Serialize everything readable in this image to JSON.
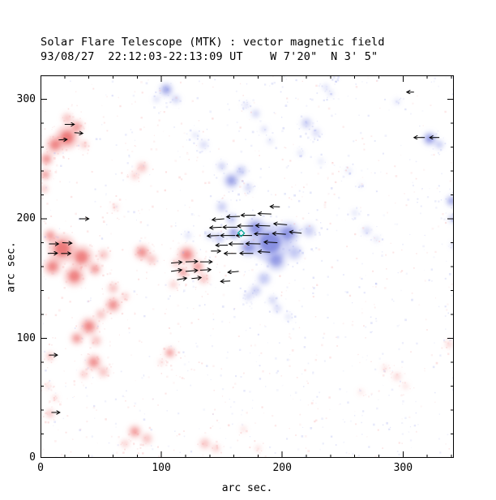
{
  "title": {
    "line1": "Solar Flare Telescope (MTK) : vector magnetic field",
    "line2": "93/08/27  22:12:03-22:13:09 UT    W 7'20\"  N 3' 5\""
  },
  "axes": {
    "xlabel": "arc sec.",
    "ylabel": "arc sec."
  },
  "chart_data": {
    "type": "heatmap",
    "title": "Solar Flare Telescope (MTK) : vector magnetic field",
    "subtitle": "93/08/27  22:12:03-22:13:09 UT    W 7'20\"  N 3' 5\"",
    "xlabel": "arc sec.",
    "ylabel": "arc sec.",
    "x_range": [
      0,
      342
    ],
    "y_range": [
      0,
      320
    ],
    "x_ticks": [
      0,
      100,
      200,
      300
    ],
    "y_ticks": [
      0,
      100,
      200,
      300
    ],
    "minor_step": 20,
    "colors": {
      "red_light": "#f59a9a",
      "red_dark": "#e85555",
      "blue_light": "#9aa3ec",
      "blue_dark": "#5b66d6",
      "arrow": "#000000",
      "marker": "#00a896",
      "frame": "#000000"
    },
    "blobs": [
      [
        22,
        268,
        10,
        "r",
        0.7
      ],
      [
        12,
        262,
        8,
        "r",
        0.6
      ],
      [
        30,
        277,
        6,
        "r",
        0.5
      ],
      [
        22,
        284,
        5,
        "r",
        0.45
      ],
      [
        36,
        262,
        4,
        "r",
        0.4
      ],
      [
        5,
        250,
        6,
        "r",
        0.55
      ],
      [
        4,
        237,
        5,
        "r",
        0.5
      ],
      [
        3,
        225,
        4,
        "r",
        0.4
      ],
      [
        84,
        243,
        5,
        "r",
        0.45
      ],
      [
        78,
        236,
        4,
        "r",
        0.35
      ],
      [
        18,
        175,
        12,
        "r",
        0.7
      ],
      [
        34,
        168,
        10,
        "r",
        0.65
      ],
      [
        10,
        160,
        8,
        "r",
        0.6
      ],
      [
        28,
        152,
        9,
        "r",
        0.65
      ],
      [
        45,
        158,
        6,
        "r",
        0.5
      ],
      [
        52,
        170,
        5,
        "r",
        0.45
      ],
      [
        8,
        186,
        6,
        "r",
        0.5
      ],
      [
        60,
        142,
        5,
        "r",
        0.45
      ],
      [
        70,
        135,
        4,
        "r",
        0.35
      ],
      [
        60,
        128,
        7,
        "r",
        0.55
      ],
      [
        50,
        120,
        5,
        "r",
        0.45
      ],
      [
        84,
        172,
        7,
        "r",
        0.55
      ],
      [
        92,
        166,
        5,
        "r",
        0.45
      ],
      [
        121,
        170,
        8,
        "r",
        0.6
      ],
      [
        130,
        160,
        6,
        "r",
        0.5
      ],
      [
        135,
        150,
        5,
        "r",
        0.45
      ],
      [
        118,
        155,
        5,
        "r",
        0.5
      ],
      [
        112,
        163,
        4,
        "r",
        0.4
      ],
      [
        110,
        145,
        4,
        "r",
        0.35
      ],
      [
        62,
        210,
        3,
        "r",
        0.3
      ],
      [
        40,
        110,
        8,
        "r",
        0.6
      ],
      [
        30,
        100,
        6,
        "r",
        0.5
      ],
      [
        46,
        98,
        5,
        "r",
        0.45
      ],
      [
        44,
        80,
        7,
        "r",
        0.55
      ],
      [
        52,
        72,
        5,
        "r",
        0.45
      ],
      [
        36,
        70,
        4,
        "r",
        0.4
      ],
      [
        8,
        85,
        4,
        "r",
        0.45
      ],
      [
        12,
        50,
        3,
        "r",
        0.3
      ],
      [
        6,
        60,
        3,
        "r",
        0.3
      ],
      [
        8,
        37,
        4,
        "r",
        0.45
      ],
      [
        107,
        88,
        5,
        "r",
        0.5
      ],
      [
        100,
        80,
        3,
        "r",
        0.3
      ],
      [
        78,
        22,
        6,
        "r",
        0.5
      ],
      [
        88,
        16,
        5,
        "r",
        0.45
      ],
      [
        70,
        12,
        4,
        "r",
        0.35
      ],
      [
        136,
        12,
        5,
        "r",
        0.45
      ],
      [
        145,
        8,
        4,
        "r",
        0.35
      ],
      [
        168,
        24,
        3,
        "r",
        0.25
      ],
      [
        180,
        8,
        3,
        "r",
        0.25
      ],
      [
        295,
        68,
        4,
        "r",
        0.3
      ],
      [
        302,
        60,
        3,
        "r",
        0.25
      ],
      [
        285,
        75,
        3,
        "r",
        0.25
      ],
      [
        265,
        55,
        3,
        "r",
        0.2
      ],
      [
        338,
        95,
        3,
        "r",
        0.45
      ],
      [
        190,
        180,
        16,
        "b",
        0.65
      ],
      [
        205,
        188,
        10,
        "b",
        0.55
      ],
      [
        178,
        192,
        9,
        "b",
        0.6
      ],
      [
        195,
        165,
        9,
        "b",
        0.5
      ],
      [
        210,
        172,
        7,
        "b",
        0.45
      ],
      [
        172,
        176,
        8,
        "b",
        0.55
      ],
      [
        222,
        190,
        6,
        "b",
        0.4
      ],
      [
        185,
        150,
        6,
        "b",
        0.45
      ],
      [
        178,
        140,
        5,
        "b",
        0.4
      ],
      [
        172,
        135,
        4,
        "b",
        0.3
      ],
      [
        192,
        132,
        4,
        "b",
        0.35
      ],
      [
        160,
        188,
        6,
        "b",
        0.5
      ],
      [
        148,
        184,
        5,
        "b",
        0.45
      ],
      [
        140,
        186,
        4,
        "b",
        0.35
      ],
      [
        122,
        186,
        3,
        "b",
        0.3
      ],
      [
        158,
        200,
        5,
        "b",
        0.45
      ],
      [
        150,
        210,
        5,
        "b",
        0.4
      ],
      [
        158,
        232,
        7,
        "b",
        0.5
      ],
      [
        166,
        240,
        5,
        "b",
        0.45
      ],
      [
        150,
        244,
        4,
        "b",
        0.4
      ],
      [
        172,
        226,
        4,
        "b",
        0.35
      ],
      [
        104,
        308,
        6,
        "b",
        0.5
      ],
      [
        112,
        300,
        4,
        "b",
        0.4
      ],
      [
        96,
        300,
        3,
        "b",
        0.3
      ],
      [
        178,
        288,
        4,
        "b",
        0.35
      ],
      [
        185,
        275,
        3,
        "b",
        0.3
      ],
      [
        170,
        295,
        3,
        "b",
        0.3
      ],
      [
        190,
        265,
        3,
        "b",
        0.25
      ],
      [
        220,
        280,
        5,
        "b",
        0.4
      ],
      [
        228,
        272,
        4,
        "b",
        0.3
      ],
      [
        236,
        310,
        3,
        "b",
        0.3
      ],
      [
        244,
        318,
        2,
        "b",
        0.2
      ],
      [
        322,
        267,
        6,
        "b",
        0.6
      ],
      [
        330,
        262,
        4,
        "b",
        0.45
      ],
      [
        340,
        215,
        5,
        "b",
        0.5
      ],
      [
        341,
        200,
        4,
        "b",
        0.4
      ],
      [
        342,
        178,
        3,
        "b",
        0.35
      ],
      [
        270,
        190,
        4,
        "b",
        0.3
      ],
      [
        278,
        183,
        3,
        "b",
        0.25
      ],
      [
        260,
        205,
        3,
        "b",
        0.25
      ],
      [
        255,
        240,
        3,
        "b",
        0.2
      ],
      [
        265,
        228,
        2,
        "b",
        0.2
      ],
      [
        196,
        125,
        4,
        "b",
        0.3
      ],
      [
        205,
        118,
        3,
        "b",
        0.25
      ],
      [
        295,
        298,
        3,
        "b",
        0.25
      ],
      [
        240,
        305,
        3,
        "b",
        0.25
      ],
      [
        215,
        255,
        3,
        "b",
        0.25
      ],
      [
        232,
        248,
        3,
        "b",
        0.2
      ],
      [
        135,
        262,
        4,
        "b",
        0.3
      ],
      [
        128,
        270,
        3,
        "b",
        0.25
      ]
    ],
    "arrows": [
      [
        152,
        200,
        185,
        10
      ],
      [
        165,
        202,
        182,
        11
      ],
      [
        178,
        203,
        180,
        12
      ],
      [
        191,
        204,
        178,
        11
      ],
      [
        150,
        193,
        183,
        10
      ],
      [
        163,
        193,
        180,
        12
      ],
      [
        176,
        194,
        180,
        13
      ],
      [
        190,
        194,
        178,
        12
      ],
      [
        204,
        195,
        175,
        11
      ],
      [
        148,
        186,
        182,
        10
      ],
      [
        161,
        186,
        180,
        12
      ],
      [
        175,
        186,
        180,
        13
      ],
      [
        189,
        187,
        178,
        12
      ],
      [
        203,
        187,
        176,
        11
      ],
      [
        216,
        188,
        174,
        10
      ],
      [
        155,
        178,
        181,
        10
      ],
      [
        168,
        179,
        180,
        12
      ],
      [
        182,
        179,
        179,
        12
      ],
      [
        196,
        180,
        177,
        11
      ],
      [
        162,
        171,
        180,
        10
      ],
      [
        176,
        171,
        179,
        11
      ],
      [
        190,
        172,
        177,
        10
      ],
      [
        198,
        210,
        178,
        8
      ],
      [
        164,
        156,
        185,
        9
      ],
      [
        157,
        148,
        183,
        8
      ],
      [
        141,
        173,
        0,
        8
      ],
      [
        108,
        163,
        5,
        9
      ],
      [
        120,
        164,
        2,
        10
      ],
      [
        132,
        164,
        0,
        10
      ],
      [
        108,
        156,
        8,
        9
      ],
      [
        120,
        156,
        5,
        10
      ],
      [
        132,
        157,
        3,
        9
      ],
      [
        113,
        149,
        10,
        8
      ],
      [
        125,
        150,
        6,
        8
      ],
      [
        7,
        179,
        0,
        8
      ],
      [
        18,
        180,
        -3,
        8
      ],
      [
        6,
        171,
        2,
        8
      ],
      [
        17,
        171,
        0,
        8
      ],
      [
        32,
        200,
        0,
        8
      ],
      [
        20,
        279,
        0,
        8
      ],
      [
        28,
        272,
        -4,
        7
      ],
      [
        15,
        266,
        3,
        7
      ],
      [
        7,
        86,
        0,
        7
      ],
      [
        9,
        38,
        0,
        7
      ],
      [
        318,
        268,
        180,
        9
      ],
      [
        330,
        268,
        180,
        8
      ],
      [
        309,
        306,
        180,
        6
      ]
    ],
    "flare_marker": {
      "x": 166,
      "y": 188
    },
    "noise": {
      "count": 1800,
      "seed": 9
    }
  }
}
